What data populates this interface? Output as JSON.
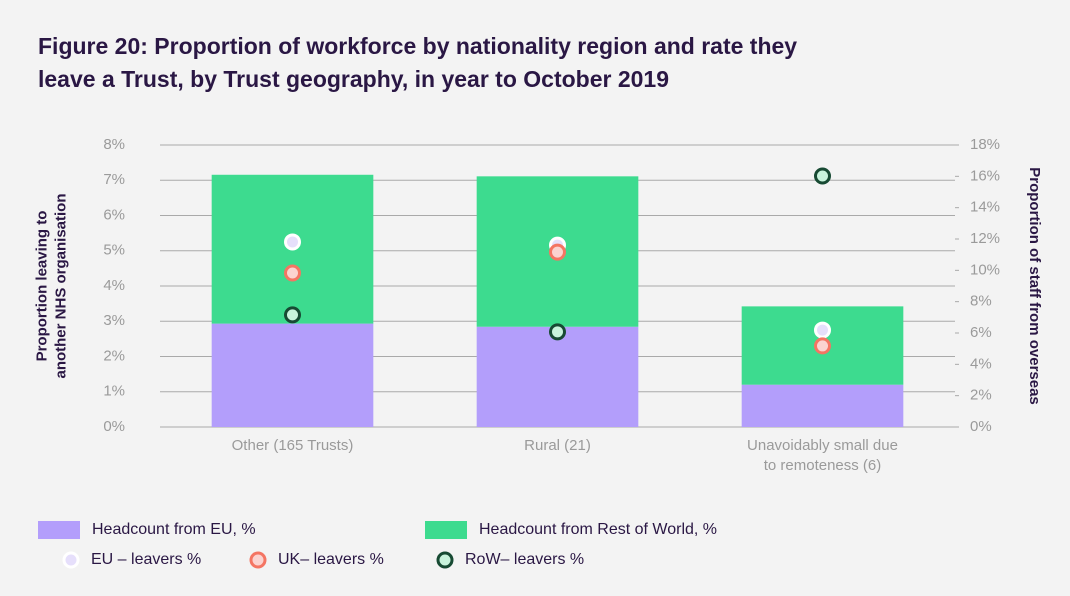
{
  "chart_data": {
    "type": "bar",
    "title": "Figure 20: Proportion of workforce by nationality region and rate they leave a Trust, by Trust geography, in year to October 2019",
    "y_label": "Proportion leaving to another NHS organisation",
    "y2_label": "Proportion of staff from overseas",
    "categories": [
      "Other (165 Trusts)",
      "Rural (21)",
      "Unavoidably small due to remoteness (6)"
    ],
    "stacked": true,
    "grid": true,
    "ylim": [
      0,
      8
    ],
    "yticks": [
      {
        "value": 0,
        "label": "0%"
      },
      {
        "value": 1,
        "label": "1%"
      },
      {
        "value": 2,
        "label": "2%"
      },
      {
        "value": 3,
        "label": "3%"
      },
      {
        "value": 4,
        "label": "4%"
      },
      {
        "value": 5,
        "label": "5%"
      },
      {
        "value": 6,
        "label": "6%"
      },
      {
        "value": 7,
        "label": "7%"
      },
      {
        "value": 8,
        "label": "8%"
      }
    ],
    "y2lim": [
      0,
      18
    ],
    "y2ticks": [
      {
        "value": 0,
        "label": "0%"
      },
      {
        "value": 2,
        "label": "2%"
      },
      {
        "value": 4,
        "label": "4%"
      },
      {
        "value": 6,
        "label": "6%"
      },
      {
        "value": 8,
        "label": "8%"
      },
      {
        "value": 10,
        "label": "10%"
      },
      {
        "value": 12,
        "label": "12%"
      },
      {
        "value": 14,
        "label": "14%"
      },
      {
        "value": 16,
        "label": "16%"
      },
      {
        "value": 18,
        "label": "18%"
      }
    ],
    "series": [
      {
        "name": "Headcount from EU, %",
        "type": "bar",
        "axis": "y2",
        "color": "#b39efb",
        "values": [
          6.6,
          6.4,
          2.7
        ]
      },
      {
        "name": "Headcount from Rest of World, %",
        "type": "bar",
        "axis": "y2",
        "color": "#3ddb8f",
        "values": [
          9.5,
          9.6,
          5.0
        ]
      },
      {
        "name": "EU – leavers %",
        "type": "scatter",
        "color": "#e6dffb",
        "edge_color": "#ffffff",
        "values": [
          5.25,
          5.16,
          2.75
        ]
      },
      {
        "name": "UK– leavers %",
        "type": "scatter",
        "color": "#fbd3d0",
        "edge_color": "#f47563",
        "values": [
          4.37,
          4.96,
          2.3
        ]
      },
      {
        "name": "RoW– leavers %",
        "type": "scatter",
        "color": "#c8f3dc",
        "edge_color": "#174a33",
        "values": [
          3.18,
          2.7,
          7.12
        ]
      }
    ]
  }
}
